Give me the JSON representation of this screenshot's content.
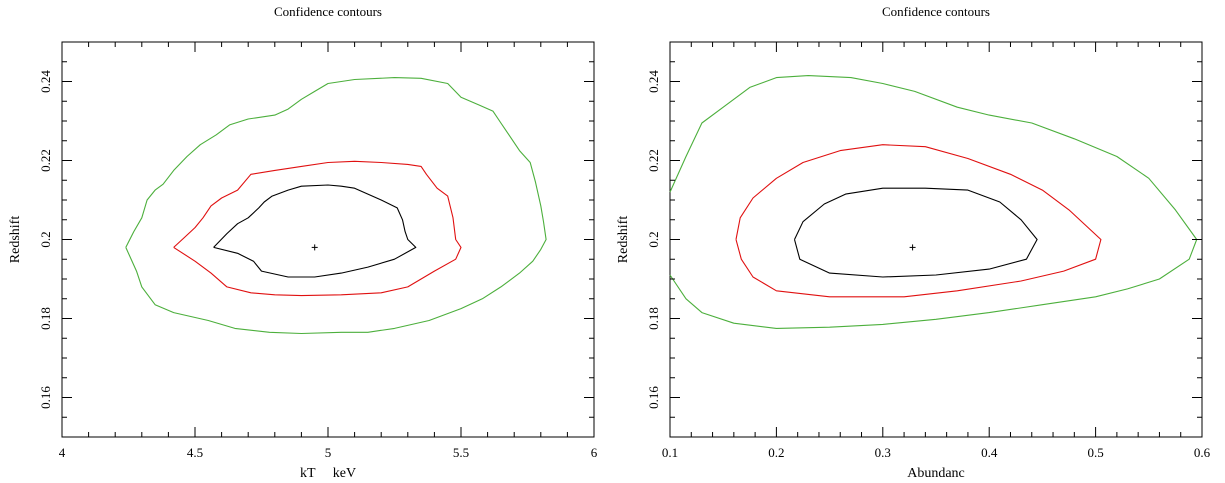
{
  "chart_data": [
    {
      "type": "contour",
      "title": "Confidence contours",
      "xlabel": "kT     keV",
      "ylabel": "Redshift",
      "xlim": [
        4,
        6
      ],
      "ylim": [
        0.15,
        0.25
      ],
      "xticks": [
        4,
        4.5,
        5,
        5.5,
        6
      ],
      "xtick_labels": [
        "4",
        "4.5",
        "5",
        "5.5",
        "6"
      ],
      "yticks": [
        0.16,
        0.18,
        0.2,
        0.22,
        0.24
      ],
      "ytick_labels": [
        "0.16",
        "0.18",
        "0.2",
        "0.22",
        "0.24"
      ],
      "best_fit": {
        "x": 4.95,
        "y": 0.198
      },
      "series": [
        {
          "color": "#000000",
          "points": [
            [
              4.57,
              0.198
            ],
            [
              4.62,
              0.2015
            ],
            [
              4.66,
              0.204
            ],
            [
              4.7,
              0.2055
            ],
            [
              4.74,
              0.208
            ],
            [
              4.76,
              0.2095
            ],
            [
              4.79,
              0.211
            ],
            [
              4.85,
              0.2125
            ],
            [
              4.9,
              0.2135
            ],
            [
              5.0,
              0.2138
            ],
            [
              5.05,
              0.2135
            ],
            [
              5.1,
              0.213
            ],
            [
              5.15,
              0.2115
            ],
            [
              5.2,
              0.21
            ],
            [
              5.26,
              0.208
            ],
            [
              5.28,
              0.205
            ],
            [
              5.29,
              0.202
            ],
            [
              5.3,
              0.2
            ],
            [
              5.33,
              0.198
            ],
            [
              5.25,
              0.195
            ],
            [
              5.15,
              0.193
            ],
            [
              5.05,
              0.1915
            ],
            [
              4.95,
              0.1905
            ],
            [
              4.85,
              0.1905
            ],
            [
              4.75,
              0.192
            ],
            [
              4.72,
              0.1945
            ],
            [
              4.66,
              0.1965
            ],
            [
              4.57,
              0.198
            ]
          ]
        },
        {
          "color": "#e01010",
          "points": [
            [
              4.42,
              0.198
            ],
            [
              4.46,
              0.2005
            ],
            [
              4.5,
              0.203
            ],
            [
              4.53,
              0.2055
            ],
            [
              4.56,
              0.2085
            ],
            [
              4.6,
              0.2105
            ],
            [
              4.66,
              0.2125
            ],
            [
              4.71,
              0.2165
            ],
            [
              4.8,
              0.2175
            ],
            [
              4.9,
              0.2185
            ],
            [
              5.0,
              0.2195
            ],
            [
              5.1,
              0.2198
            ],
            [
              5.2,
              0.2195
            ],
            [
              5.3,
              0.219
            ],
            [
              5.35,
              0.2185
            ],
            [
              5.37,
              0.2165
            ],
            [
              5.41,
              0.213
            ],
            [
              5.45,
              0.211
            ],
            [
              5.47,
              0.2055
            ],
            [
              5.48,
              0.2
            ],
            [
              5.5,
              0.198
            ],
            [
              5.48,
              0.195
            ],
            [
              5.4,
              0.192
            ],
            [
              5.3,
              0.188
            ],
            [
              5.2,
              0.1865
            ],
            [
              5.05,
              0.186
            ],
            [
              4.9,
              0.1858
            ],
            [
              4.8,
              0.186
            ],
            [
              4.71,
              0.1865
            ],
            [
              4.62,
              0.188
            ],
            [
              4.56,
              0.1915
            ],
            [
              4.5,
              0.1945
            ],
            [
              4.42,
              0.198
            ]
          ]
        },
        {
          "color": "#4caf3c",
          "points": [
            [
              4.24,
              0.198
            ],
            [
              4.27,
              0.202
            ],
            [
              4.3,
              0.2055
            ],
            [
              4.32,
              0.21
            ],
            [
              4.35,
              0.2125
            ],
            [
              4.38,
              0.214
            ],
            [
              4.42,
              0.2175
            ],
            [
              4.47,
              0.221
            ],
            [
              4.52,
              0.224
            ],
            [
              4.58,
              0.2265
            ],
            [
              4.63,
              0.229
            ],
            [
              4.7,
              0.2305
            ],
            [
              4.8,
              0.2315
            ],
            [
              4.85,
              0.233
            ],
            [
              4.9,
              0.2355
            ],
            [
              4.95,
              0.2375
            ],
            [
              5.0,
              0.2395
            ],
            [
              5.1,
              0.2405
            ],
            [
              5.25,
              0.241
            ],
            [
              5.35,
              0.2408
            ],
            [
              5.45,
              0.2395
            ],
            [
              5.5,
              0.236
            ],
            [
              5.57,
              0.234
            ],
            [
              5.62,
              0.2325
            ],
            [
              5.65,
              0.2295
            ],
            [
              5.68,
              0.2265
            ],
            [
              5.72,
              0.2225
            ],
            [
              5.76,
              0.2195
            ],
            [
              5.78,
              0.2145
            ],
            [
              5.8,
              0.2085
            ],
            [
              5.81,
              0.2045
            ],
            [
              5.82,
              0.2
            ],
            [
              5.8,
              0.1975
            ],
            [
              5.77,
              0.1945
            ],
            [
              5.72,
              0.1915
            ],
            [
              5.65,
              0.188
            ],
            [
              5.58,
              0.185
            ],
            [
              5.5,
              0.1825
            ],
            [
              5.38,
              0.1795
            ],
            [
              5.25,
              0.1775
            ],
            [
              5.15,
              0.1765
            ],
            [
              5.05,
              0.1765
            ],
            [
              4.9,
              0.1762
            ],
            [
              4.78,
              0.1765
            ],
            [
              4.65,
              0.1775
            ],
            [
              4.55,
              0.1795
            ],
            [
              4.42,
              0.1815
            ],
            [
              4.35,
              0.1835
            ],
            [
              4.3,
              0.188
            ],
            [
              4.28,
              0.192
            ],
            [
              4.24,
              0.198
            ]
          ]
        }
      ]
    },
    {
      "type": "contour",
      "title": "Confidence contours",
      "xlabel": "Abundanc",
      "ylabel": "Redshift",
      "xlim": [
        0.1,
        0.6
      ],
      "ylim": [
        0.15,
        0.25
      ],
      "xticks": [
        0.1,
        0.2,
        0.3,
        0.4,
        0.5,
        0.6
      ],
      "xtick_labels": [
        "0.1",
        "0.2",
        "0.3",
        "0.4",
        "0.5",
        "0.6"
      ],
      "yticks": [
        0.16,
        0.18,
        0.2,
        0.22,
        0.24
      ],
      "ytick_labels": [
        "0.16",
        "0.18",
        "0.2",
        "0.22",
        "0.24"
      ],
      "best_fit": {
        "x": 0.328,
        "y": 0.198
      },
      "series": [
        {
          "color": "#000000",
          "points": [
            [
              0.217,
              0.2
            ],
            [
              0.225,
              0.2045
            ],
            [
              0.245,
              0.209
            ],
            [
              0.265,
              0.2115
            ],
            [
              0.3,
              0.213
            ],
            [
              0.34,
              0.213
            ],
            [
              0.38,
              0.2125
            ],
            [
              0.41,
              0.2095
            ],
            [
              0.43,
              0.205
            ],
            [
              0.445,
              0.2
            ],
            [
              0.435,
              0.195
            ],
            [
              0.4,
              0.1925
            ],
            [
              0.35,
              0.191
            ],
            [
              0.3,
              0.1905
            ],
            [
              0.25,
              0.1915
            ],
            [
              0.222,
              0.195
            ],
            [
              0.217,
              0.2
            ]
          ]
        },
        {
          "color": "#e01010",
          "points": [
            [
              0.162,
              0.2
            ],
            [
              0.166,
              0.2055
            ],
            [
              0.178,
              0.2105
            ],
            [
              0.2,
              0.2155
            ],
            [
              0.225,
              0.2195
            ],
            [
              0.26,
              0.2225
            ],
            [
              0.3,
              0.224
            ],
            [
              0.34,
              0.2235
            ],
            [
              0.38,
              0.2205
            ],
            [
              0.42,
              0.2165
            ],
            [
              0.45,
              0.2125
            ],
            [
              0.475,
              0.2075
            ],
            [
              0.505,
              0.2
            ],
            [
              0.5,
              0.195
            ],
            [
              0.47,
              0.192
            ],
            [
              0.43,
              0.1895
            ],
            [
              0.37,
              0.187
            ],
            [
              0.32,
              0.1855
            ],
            [
              0.25,
              0.1855
            ],
            [
              0.2,
              0.187
            ],
            [
              0.178,
              0.1905
            ],
            [
              0.167,
              0.195
            ],
            [
              0.162,
              0.2
            ]
          ]
        },
        {
          "color": "#4caf3c",
          "points": [
            [
              0.1,
              0.212
            ],
            [
              0.115,
              0.221
            ],
            [
              0.13,
              0.2295
            ],
            [
              0.15,
              0.2335
            ],
            [
              0.175,
              0.2385
            ],
            [
              0.2,
              0.241
            ],
            [
              0.23,
              0.2415
            ],
            [
              0.27,
              0.241
            ],
            [
              0.3,
              0.2395
            ],
            [
              0.33,
              0.2375
            ],
            [
              0.37,
              0.2335
            ],
            [
              0.4,
              0.2315
            ],
            [
              0.44,
              0.2295
            ],
            [
              0.48,
              0.2255
            ],
            [
              0.52,
              0.221
            ],
            [
              0.55,
              0.2155
            ],
            [
              0.575,
              0.2075
            ],
            [
              0.595,
              0.2
            ],
            [
              0.588,
              0.195
            ],
            [
              0.56,
              0.19
            ],
            [
              0.53,
              0.1875
            ],
            [
              0.5,
              0.1855
            ],
            [
              0.45,
              0.1835
            ],
            [
              0.4,
              0.1815
            ],
            [
              0.35,
              0.1798
            ],
            [
              0.3,
              0.1785
            ],
            [
              0.25,
              0.1778
            ],
            [
              0.2,
              0.1775
            ],
            [
              0.16,
              0.1788
            ],
            [
              0.13,
              0.1815
            ],
            [
              0.115,
              0.185
            ],
            [
              0.1,
              0.191
            ]
          ]
        }
      ]
    }
  ]
}
